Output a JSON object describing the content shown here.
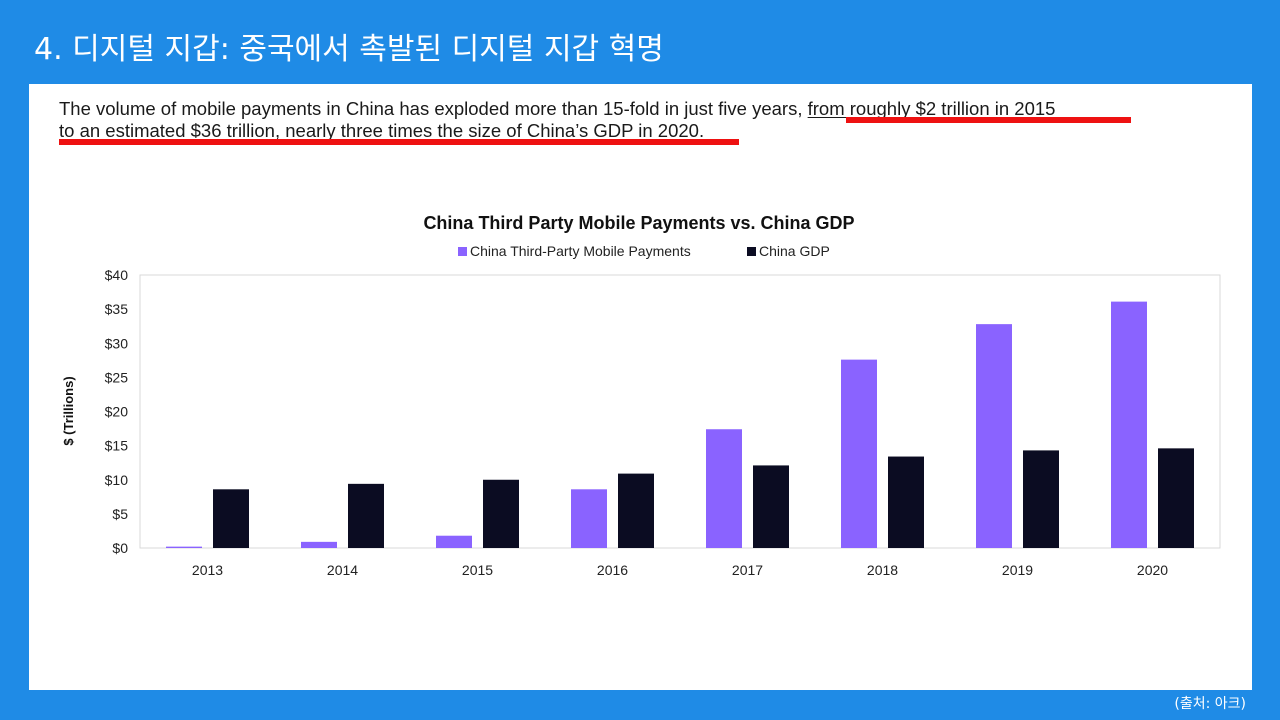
{
  "slide": {
    "title": "4. 디지털 지갑: 중국에서 촉발된 디지털 지갑 혁명",
    "source": "(출처: 아크)"
  },
  "description": {
    "plain": "The volume of mobile payments in China has exploded more than 15-fold in just five years, ",
    "highlight_1": "from roughly $2 trillion in 2015",
    "highlight_2": "to an estimated $36 trillion, nearly three times the size of China’s GDP in 2020."
  },
  "colors": {
    "background": "#1f8be6",
    "mobile_payments": "#8a63ff",
    "gdp": "#0b0c22",
    "underline": "#ee1111"
  },
  "chart_data": {
    "type": "bar",
    "title": "China Third Party Mobile Payments vs. China GDP",
    "ylabel": "$ (Trillions)",
    "xlabel": "",
    "categories": [
      "2013",
      "2014",
      "2015",
      "2016",
      "2017",
      "2018",
      "2019",
      "2020"
    ],
    "series": [
      {
        "name": "China Third-Party Mobile Payments",
        "values": [
          0.2,
          0.9,
          1.8,
          8.6,
          17.4,
          27.6,
          32.8,
          36.1
        ]
      },
      {
        "name": "China GDP",
        "values": [
          8.6,
          9.4,
          10.0,
          10.9,
          12.1,
          13.4,
          14.3,
          14.6
        ]
      }
    ],
    "ylim": [
      0,
      40
    ],
    "yticks": [
      0,
      5,
      10,
      15,
      20,
      25,
      30,
      35,
      40
    ],
    "ytick_prefix": "$",
    "legend": "top-center",
    "grid": false
  }
}
